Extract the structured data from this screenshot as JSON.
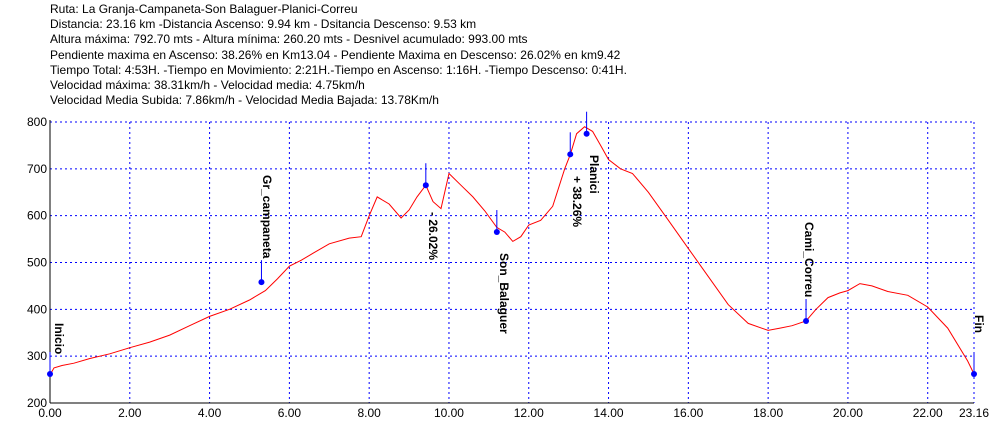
{
  "info_lines": [
    "Ruta: La Granja-Campaneta-Son Balaguer-Planici-Correu",
    "Distancia: 23.16 km -Distancia Ascenso: 9.94 km - Dsitancia Descenso: 9.53 km",
    "Altura máxima: 792.70 mts - Altura mínima: 260.20 mts - Desnivel acumulado: 993.00 mts",
    "Pendiente maxima en Ascenso: 38.26% en Km13.04 - Pendiente Maxima en Descenso: 26.02% en km9.42",
    "Tiempo Total: 4:53H. -Tiempo en Movimiento: 2:21H.-Tiempo en Ascenso: 1:16H. -Tiempo Descenso: 0:41H.",
    "Velocidad máxima: 38.31km/h - Velocidad media: 4.75km/h",
    "Velocidad Media Subida: 7.86km/h - Velocidad Media Bajada: 13.78Km/h"
  ],
  "chart_data": {
    "type": "line",
    "xlim": [
      0,
      23.16
    ],
    "ylim": [
      200,
      800
    ],
    "x_ticks": [
      "0.00",
      "2.00",
      "4.00",
      "6.00",
      "8.00",
      "10.00",
      "12.00",
      "14.00",
      "16.00",
      "18.00",
      "20.00",
      "22.00",
      "23.16"
    ],
    "x_tick_values": [
      0,
      2,
      4,
      6,
      8,
      10,
      12,
      14,
      16,
      18,
      20,
      22,
      23.16
    ],
    "y_ticks": [
      "200",
      "300",
      "400",
      "500",
      "600",
      "700",
      "800"
    ],
    "y_tick_values": [
      200,
      300,
      400,
      500,
      600,
      700,
      800
    ],
    "grid": true,
    "colors": {
      "line": "#ff0000",
      "grid": "#0000ff",
      "marker": "#0000ff",
      "axis": "#000000"
    },
    "series": [
      {
        "x": [
          0,
          0.1,
          0.3,
          0.6,
          1,
          1.5,
          2,
          2.5,
          3,
          3.5,
          4,
          4.5,
          5,
          5.4,
          5.7,
          6,
          6.3,
          6.6,
          7,
          7.5,
          7.8,
          8,
          8.2,
          8.5,
          8.8,
          9,
          9.2,
          9.42,
          9.6,
          9.8,
          10,
          10.3,
          10.6,
          10.9,
          11.2,
          11.4,
          11.6,
          11.8,
          12,
          12.3,
          12.6,
          12.9,
          13.04,
          13.2,
          13.4,
          13.6,
          13.8,
          14,
          14.3,
          14.6,
          15,
          15.5,
          16,
          16.5,
          17,
          17.5,
          18,
          18.3,
          18.6,
          18.95,
          19.2,
          19.5,
          19.8,
          20,
          20.3,
          20.6,
          21,
          21.5,
          22,
          22.5,
          23,
          23.16
        ],
        "y": [
          260,
          275,
          280,
          285,
          295,
          305,
          318,
          330,
          345,
          365,
          385,
          400,
          420,
          440,
          465,
          492,
          505,
          520,
          540,
          552,
          555,
          600,
          640,
          625,
          595,
          612,
          640,
          665,
          630,
          615,
          690,
          665,
          640,
          610,
          575,
          565,
          545,
          555,
          580,
          590,
          620,
          700,
          730,
          775,
          790,
          780,
          750,
          720,
          700,
          690,
          650,
          590,
          530,
          470,
          410,
          370,
          355,
          360,
          365,
          375,
          400,
          425,
          435,
          440,
          455,
          450,
          438,
          430,
          405,
          360,
          290,
          262
        ]
      }
    ],
    "waypoints": [
      {
        "label": "Inicio",
        "x": 0,
        "y": 262
      },
      {
        "label": "Gr_campaneta",
        "x": 5.3,
        "y": 458
      },
      {
        "label": "- 26.02%",
        "x": 9.42,
        "y": 665
      },
      {
        "label": "Son_Balaguer",
        "x": 11.2,
        "y": 565
      },
      {
        "label": "+ 38.26%",
        "x": 13.04,
        "y": 731
      },
      {
        "label": "Planici",
        "x": 13.45,
        "y": 775
      },
      {
        "label": "Cami_Correu",
        "x": 18.95,
        "y": 375
      },
      {
        "label": "Fin",
        "x": 23.16,
        "y": 262
      }
    ]
  }
}
